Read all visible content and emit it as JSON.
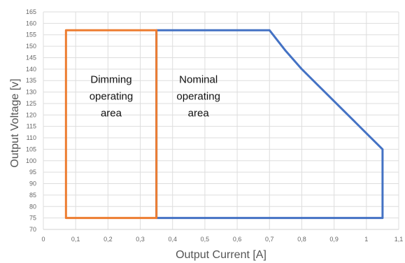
{
  "chart_data": {
    "type": "line",
    "xlabel": "Output Current [A]",
    "ylabel": "Output Voltage [v]",
    "xlim": [
      0,
      1.1
    ],
    "ylim": [
      70,
      165
    ],
    "x_ticks": [
      0,
      0.1,
      0.2,
      0.3,
      0.4,
      0.5,
      0.6,
      0.7,
      0.8,
      0.9,
      1.0,
      1.1
    ],
    "x_tick_labels": [
      "0",
      "0,1",
      "0,2",
      "0,3",
      "0,4",
      "0,5",
      "0,6",
      "0,7",
      "0,8",
      "0,9",
      "1",
      "1,1"
    ],
    "y_ticks": [
      70,
      75,
      80,
      85,
      90,
      95,
      100,
      105,
      110,
      115,
      120,
      125,
      130,
      135,
      140,
      145,
      150,
      155,
      160,
      165
    ],
    "y_tick_labels": [
      "70",
      "75",
      "80",
      "85",
      "90",
      "95",
      "100",
      "105",
      "110",
      "115",
      "120",
      "125",
      "130",
      "135",
      "140",
      "145",
      "150",
      "155",
      "160",
      "165"
    ],
    "grid": true,
    "series": [
      {
        "color": "#4472C4",
        "points": [
          [
            0.35,
            75
          ],
          [
            0.35,
            157
          ],
          [
            0.7,
            157
          ],
          [
            0.75,
            148
          ],
          [
            0.8,
            140
          ],
          [
            0.85,
            133
          ],
          [
            0.9,
            126
          ],
          [
            0.95,
            119
          ],
          [
            1.0,
            112
          ],
          [
            1.05,
            105
          ],
          [
            1.05,
            75
          ],
          [
            0.35,
            75
          ]
        ]
      },
      {
        "color": "#ED7D31",
        "points": [
          [
            0.07,
            75
          ],
          [
            0.07,
            157
          ],
          [
            0.35,
            157
          ],
          [
            0.35,
            75
          ],
          [
            0.07,
            75
          ]
        ]
      }
    ],
    "annotations": [
      {
        "lines": [
          "Dimming",
          "operating",
          "area"
        ],
        "x": 0.21,
        "y": 131
      },
      {
        "lines": [
          "Nominal",
          "operating",
          "area"
        ],
        "x": 0.48,
        "y": 131
      }
    ]
  }
}
